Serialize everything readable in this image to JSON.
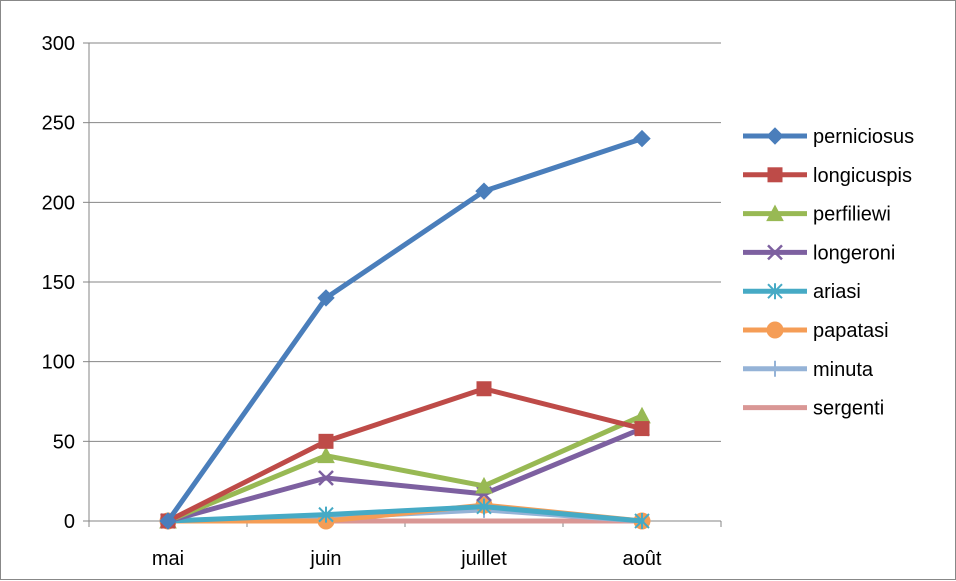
{
  "chart_data": {
    "type": "line",
    "categories": [
      "mai",
      "juin",
      "juillet",
      "août"
    ],
    "ylim": [
      0,
      300
    ],
    "yticks": [
      0,
      50,
      100,
      150,
      200,
      250,
      300
    ],
    "grid": true,
    "legend_position": "right",
    "series": [
      {
        "name": "perniciosus",
        "values": [
          0,
          140,
          207,
          240
        ],
        "color": "#4a7ebb",
        "marker": "diamond"
      },
      {
        "name": "longicuspis",
        "values": [
          0,
          50,
          83,
          58
        ],
        "color": "#be4b48",
        "marker": "square"
      },
      {
        "name": "perfiliewi",
        "values": [
          0,
          41,
          22,
          66
        ],
        "color": "#98b954",
        "marker": "triangle"
      },
      {
        "name": "longeroni",
        "values": [
          0,
          27,
          17,
          58
        ],
        "color": "#7d60a0",
        "marker": "x"
      },
      {
        "name": "ariasi",
        "values": [
          0,
          4,
          9,
          0
        ],
        "color": "#46aac5",
        "marker": "star"
      },
      {
        "name": "papatasi",
        "values": [
          0,
          0,
          10,
          0
        ],
        "color": "#f59d56",
        "marker": "circle"
      },
      {
        "name": "minuta",
        "values": [
          0,
          2,
          7,
          0
        ],
        "color": "#95b3d7",
        "marker": "plus"
      },
      {
        "name": "sergenti",
        "values": [
          0,
          0,
          0,
          0
        ],
        "color": "#d99795",
        "marker": "none"
      }
    ]
  }
}
